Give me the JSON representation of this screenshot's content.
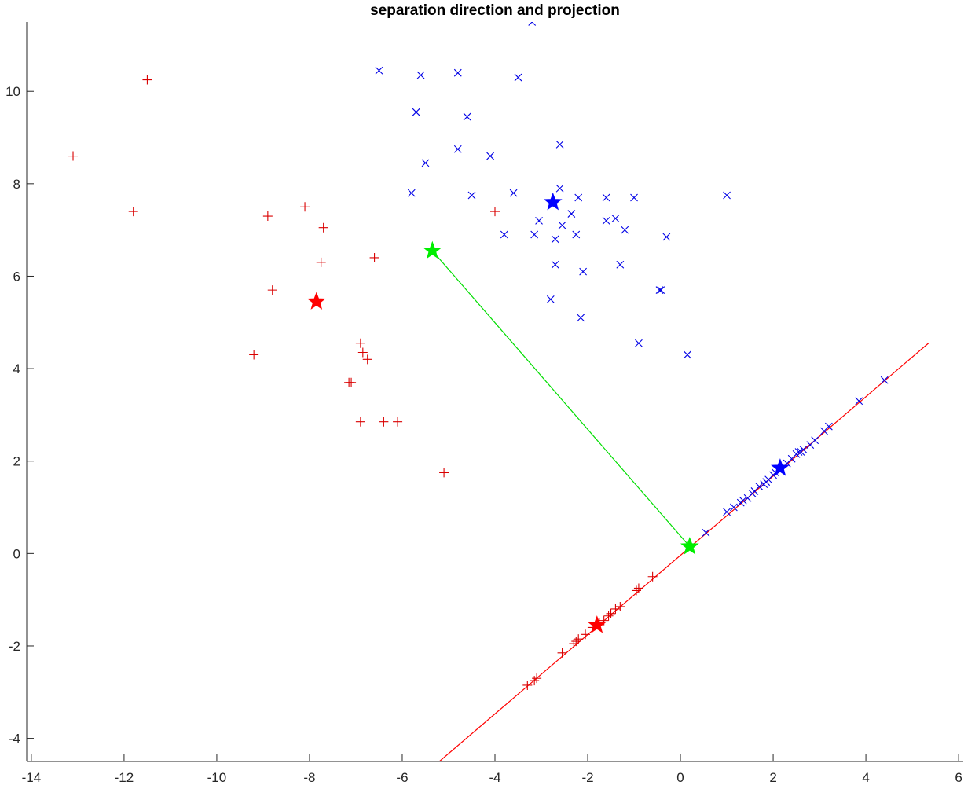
{
  "chart_data": {
    "type": "scatter",
    "title": "separation direction and projection",
    "xlabel": "",
    "ylabel": "",
    "xlim": [
      -14.1,
      6.1
    ],
    "ylim": [
      -4.5,
      11.5
    ],
    "xticks": [
      -14,
      -12,
      -10,
      -8,
      -6,
      -4,
      -2,
      0,
      2,
      4,
      6
    ],
    "yticks": [
      -4,
      -2,
      0,
      2,
      4,
      6,
      8,
      10
    ],
    "xtick_labels": [
      "-14",
      "-12",
      "-10",
      "-8",
      "-6",
      "-4",
      "-2",
      "0",
      "2",
      "4",
      "6"
    ],
    "ytick_labels": [
      "-4",
      "-2",
      "0",
      "2",
      "4",
      "6",
      "8",
      "10"
    ],
    "grid": false,
    "colors": {
      "red": "#d90000",
      "blue": "#0000e6",
      "green": "#00dd00",
      "axis": "#262626"
    },
    "series": [
      {
        "marker": "+",
        "color": "#d90000",
        "x": [
          -13.1,
          -11.8,
          -11.5,
          -8.9,
          -8.1,
          -7.7,
          -7.75,
          -8.8,
          -6.6,
          -4.0,
          -9.2,
          -6.9,
          -6.85,
          -6.75,
          -7.15,
          -7.1,
          -6.9,
          -6.4,
          -6.1,
          -5.1
        ],
        "y": [
          8.6,
          7.4,
          10.25,
          7.3,
          7.5,
          7.05,
          6.3,
          5.7,
          6.4,
          7.4,
          4.3,
          4.55,
          4.35,
          4.2,
          3.7,
          3.7,
          2.85,
          2.85,
          2.85,
          1.75
        ]
      },
      {
        "marker": "x",
        "color": "#0000e6",
        "x": [
          -3.2,
          -6.5,
          -5.6,
          -4.8,
          -3.5,
          -5.7,
          -4.6,
          -4.8,
          -4.1,
          -5.5,
          -2.6,
          -5.8,
          -4.5,
          -3.6,
          -2.6,
          -2.2,
          -1.6,
          -1.0,
          1.0,
          -2.35,
          -3.05,
          -2.55,
          -1.6,
          -1.4,
          -1.2,
          -3.8,
          -3.15,
          -2.7,
          -2.25,
          -0.3,
          -2.7,
          -2.1,
          -1.3,
          -0.45,
          -0.42,
          -2.8,
          -2.15,
          -0.9,
          0.15
        ],
        "y": [
          11.5,
          10.45,
          10.35,
          10.4,
          10.3,
          9.55,
          9.45,
          8.75,
          8.6,
          8.45,
          8.85,
          7.8,
          7.75,
          7.8,
          7.9,
          7.7,
          7.7,
          7.7,
          7.75,
          7.35,
          7.2,
          7.1,
          7.2,
          7.25,
          7.0,
          6.9,
          6.9,
          6.8,
          6.9,
          6.85,
          6.25,
          6.1,
          6.25,
          5.7,
          5.7,
          5.5,
          5.1,
          4.55,
          4.3
        ]
      },
      {
        "marker": "+",
        "color": "#d90000",
        "x": [
          -3.3,
          -3.15,
          -3.1,
          -2.55,
          -2.3,
          -2.25,
          -2.2,
          -2.05,
          -1.9,
          -1.75,
          -1.65,
          -1.55,
          -1.5,
          -1.4,
          -1.3,
          -0.95,
          -0.9,
          -0.6
        ],
        "y": [
          -2.85,
          -2.75,
          -2.7,
          -2.15,
          -1.95,
          -1.9,
          -1.85,
          -1.75,
          -1.6,
          -1.5,
          -1.45,
          -1.35,
          -1.3,
          -1.2,
          -1.15,
          -0.8,
          -0.75,
          -0.5
        ]
      },
      {
        "marker": "x",
        "color": "#0000e6",
        "x": [
          0.55,
          1.0,
          1.15,
          1.3,
          1.35,
          1.45,
          1.55,
          1.6,
          1.7,
          1.8,
          1.85,
          1.9,
          2.0,
          2.05,
          2.15,
          2.3,
          2.4,
          2.5,
          2.55,
          2.6,
          2.65,
          2.8,
          2.9,
          3.1,
          3.2,
          3.85,
          4.4
        ],
        "y": [
          0.45,
          0.9,
          1.0,
          1.1,
          1.15,
          1.2,
          1.3,
          1.35,
          1.45,
          1.5,
          1.55,
          1.6,
          1.7,
          1.75,
          1.8,
          1.95,
          2.05,
          2.15,
          2.2,
          2.2,
          2.25,
          2.35,
          2.45,
          2.65,
          2.75,
          3.3,
          3.75
        ]
      },
      {
        "marker": "star",
        "color": "#ff0000",
        "x": [
          -7.85,
          -1.8
        ],
        "y": [
          5.45,
          -1.55
        ]
      },
      {
        "marker": "star",
        "color": "#0000ff",
        "x": [
          -2.75,
          2.15
        ],
        "y": [
          7.6,
          1.85
        ]
      },
      {
        "marker": "star",
        "color": "#00ee00",
        "x": [
          -5.35,
          0.2
        ],
        "y": [
          6.55,
          0.15
        ]
      }
    ],
    "lines": [
      {
        "color": "#ff0000",
        "x": [
          -5.2,
          5.35
        ],
        "y": [
          -4.5,
          4.55
        ]
      },
      {
        "color": "#00dd00",
        "x": [
          -5.35,
          0.2
        ],
        "y": [
          6.55,
          0.15
        ]
      }
    ]
  }
}
